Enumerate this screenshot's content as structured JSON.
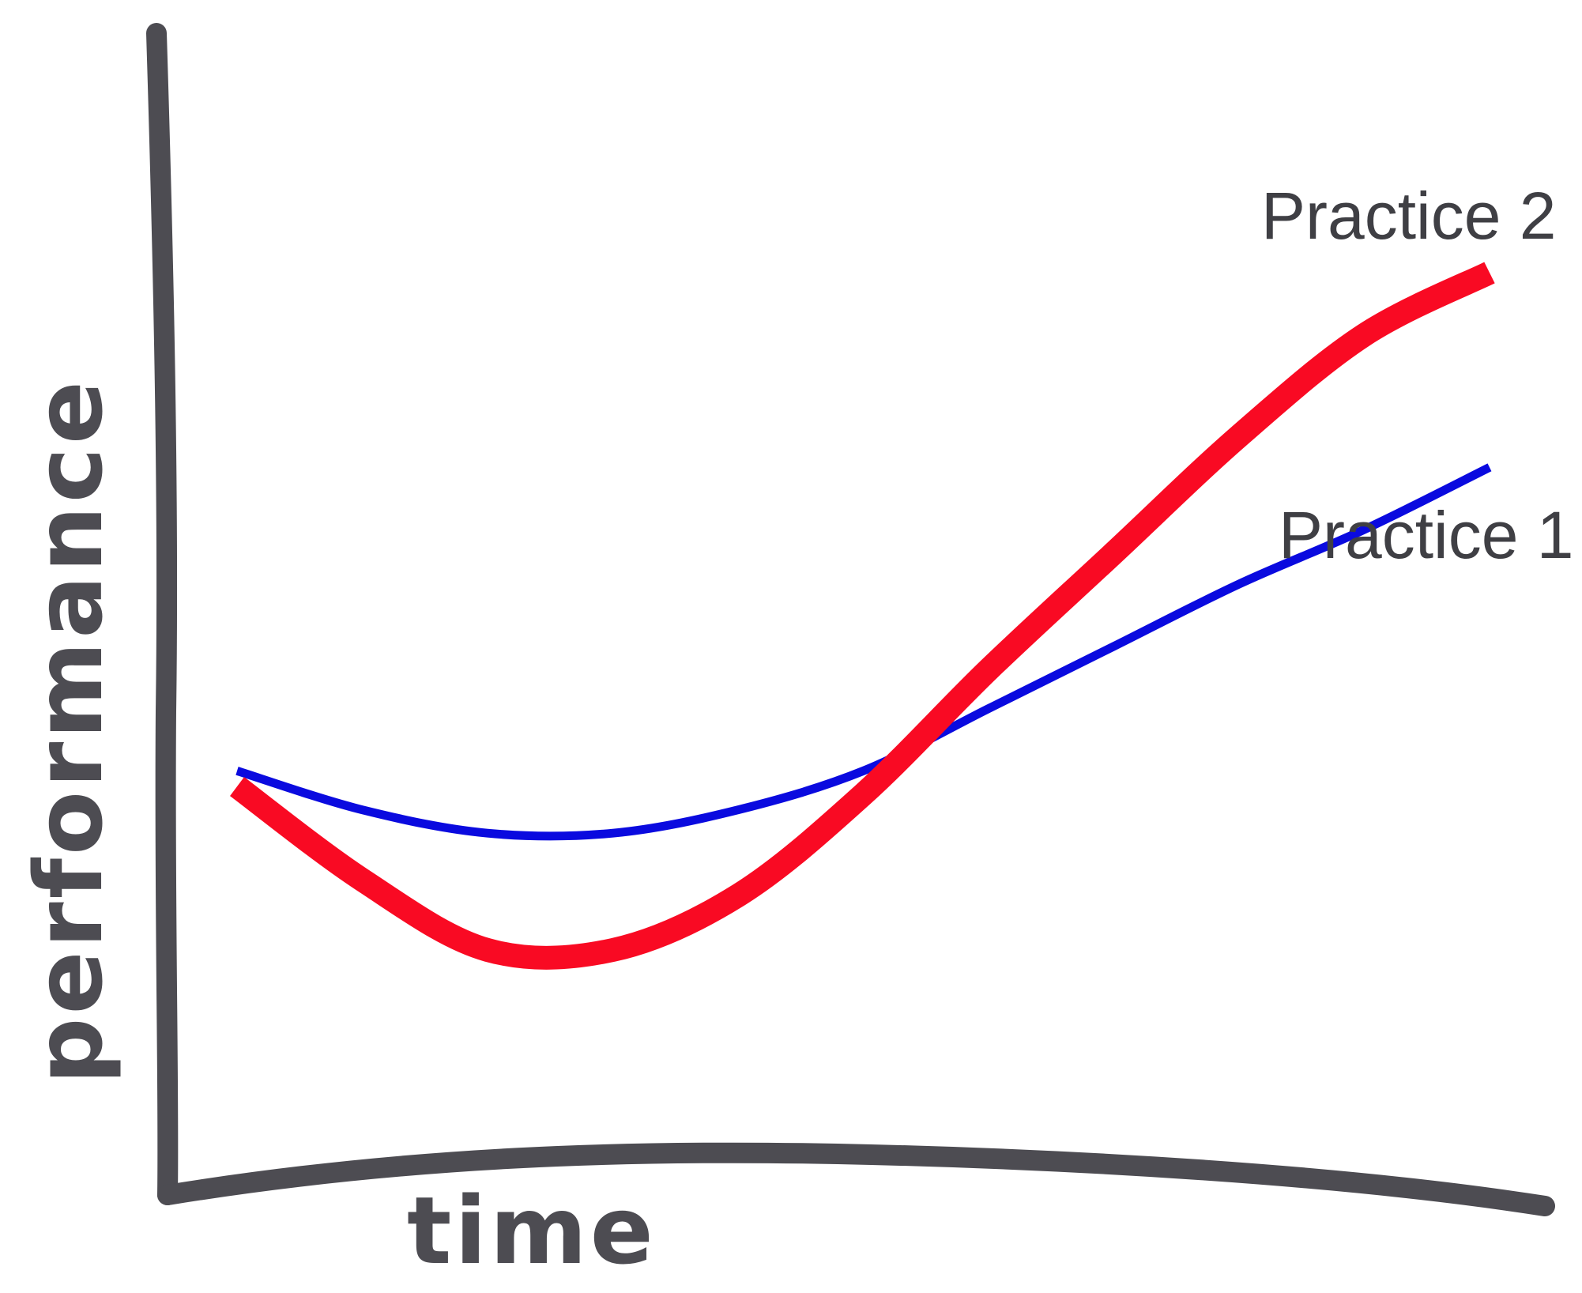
{
  "chart_data": {
    "type": "line",
    "title": "",
    "xlabel": "time",
    "ylabel": "performance",
    "xlim": [
      0,
      10
    ],
    "ylim": [
      0,
      10
    ],
    "grid": false,
    "legend": "none",
    "series": [
      {
        "name": "Practice 1",
        "color": "#0a0adf",
        "x": [
          0,
          1,
          2,
          3,
          4,
          5,
          6,
          7,
          8,
          9,
          10
        ],
        "y": [
          3.6,
          3.1,
          2.8,
          2.8,
          3.1,
          3.6,
          4.4,
          5.2,
          6.0,
          6.7,
          7.5
        ]
      },
      {
        "name": "Practice 2",
        "color": "#f90a23",
        "x": [
          0,
          1,
          2,
          3,
          4,
          5,
          6,
          7,
          8,
          9,
          10
        ],
        "y": [
          3.4,
          2.2,
          1.3,
          1.3,
          2.0,
          3.3,
          4.9,
          6.4,
          7.9,
          9.2,
          10.0
        ]
      }
    ]
  }
}
